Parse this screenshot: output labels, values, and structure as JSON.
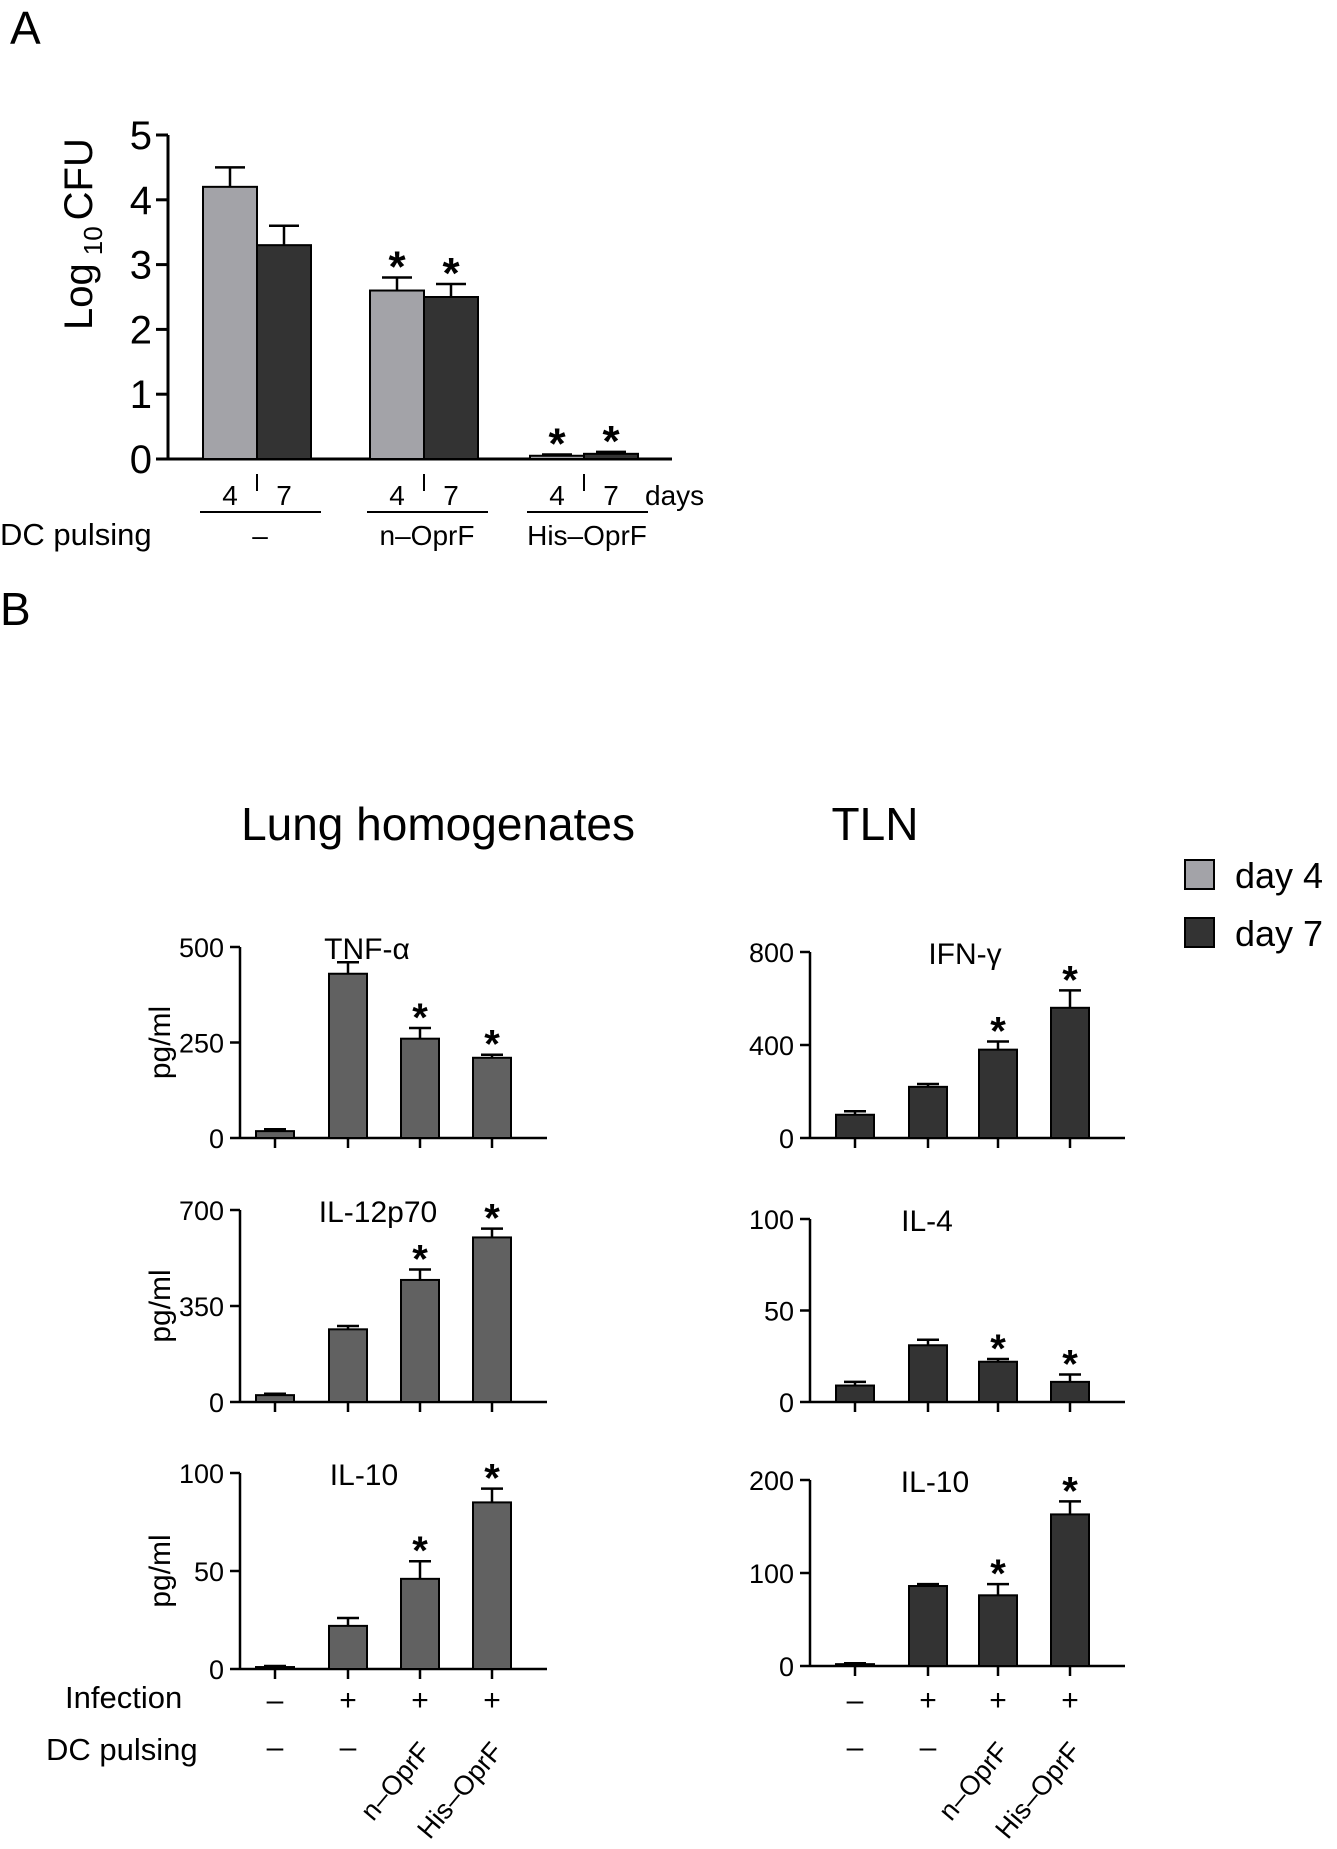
{
  "panel_a": {
    "letter": "A",
    "ylabel_prefix": "Log",
    "ylabel_sub": "10",
    "ylabel_suffix": "CFU",
    "days_label": "days",
    "dc_pulsing_label": "DC pulsing",
    "star": "*"
  },
  "panel_b": {
    "letter": "B",
    "left_title": "Lung homogenates",
    "right_title": "TLN",
    "ylabel": "pg/ml",
    "infection_label": "Infection",
    "dc_pulsing_label": "DC pulsing",
    "infection_values": [
      "–",
      "+",
      "+",
      "+"
    ],
    "pulsing_values": [
      "–",
      "–",
      "n–OprF",
      "His–OprF"
    ],
    "star": "*"
  },
  "legend": [
    {
      "label": "day 4",
      "color": "#a3a3a8"
    },
    {
      "label": "day 7",
      "color": "#333333"
    }
  ],
  "colors": {
    "day4": "#a3a3a8",
    "day7": "#333333",
    "lung": "#616161",
    "tln": "#333333"
  },
  "chart_data": [
    {
      "id": "cfu",
      "type": "bar",
      "title": "",
      "ylabel": "Log 10 CFU",
      "xlabel": "days",
      "ylim": [
        0,
        5
      ],
      "yticks": [
        0,
        1,
        2,
        3,
        4,
        5
      ],
      "groups": [
        {
          "label": "–",
          "days": [
            "4",
            "7"
          ],
          "values": [
            4.2,
            3.3
          ],
          "errors": [
            0.3,
            0.3
          ],
          "stars": [
            false,
            false
          ]
        },
        {
          "label": "n–OprF",
          "days": [
            "4",
            "7"
          ],
          "values": [
            2.6,
            2.5
          ],
          "errors": [
            0.2,
            0.2
          ],
          "stars": [
            true,
            true
          ]
        },
        {
          "label": "His–OprF",
          "days": [
            "4",
            "7"
          ],
          "values": [
            0.05,
            0.08
          ],
          "errors": [
            0.02,
            0.03
          ],
          "stars": [
            true,
            true
          ]
        }
      ],
      "series": [
        {
          "name": "day 4"
        },
        {
          "name": "day 7"
        }
      ]
    },
    {
      "id": "lung-tnf",
      "type": "bar",
      "title": "TNF-α",
      "ylabel": "pg/ml",
      "ylim": [
        0,
        500
      ],
      "yticks": [
        0,
        250,
        500
      ],
      "values": [
        18,
        430,
        260,
        210
      ],
      "errors": [
        5,
        30,
        28,
        8
      ],
      "stars": [
        false,
        false,
        true,
        true
      ]
    },
    {
      "id": "lung-il12",
      "type": "bar",
      "title": "IL-12p70",
      "ylabel": "pg/ml",
      "ylim": [
        0,
        700
      ],
      "yticks": [
        0,
        350,
        700
      ],
      "values": [
        25,
        265,
        445,
        600
      ],
      "errors": [
        5,
        12,
        38,
        32
      ],
      "stars": [
        false,
        false,
        true,
        true
      ]
    },
    {
      "id": "lung-il10",
      "type": "bar",
      "title": "IL-10",
      "ylabel": "pg/ml",
      "ylim": [
        0,
        100
      ],
      "yticks": [
        0,
        50,
        100
      ],
      "values": [
        1,
        22,
        46,
        85
      ],
      "errors": [
        0.5,
        4,
        9,
        7
      ],
      "stars": [
        false,
        false,
        true,
        true
      ]
    },
    {
      "id": "tln-ifn",
      "type": "bar",
      "title": "IFN-γ",
      "ylabel": "",
      "ylim": [
        0,
        800
      ],
      "yticks": [
        0,
        400,
        800
      ],
      "values": [
        100,
        220,
        380,
        560
      ],
      "errors": [
        15,
        12,
        35,
        75
      ],
      "stars": [
        false,
        false,
        true,
        true
      ]
    },
    {
      "id": "tln-il4",
      "type": "bar",
      "title": "IL-4",
      "ylabel": "",
      "ylim": [
        0,
        100
      ],
      "yticks": [
        0,
        50,
        100
      ],
      "values": [
        9,
        31,
        22,
        11
      ],
      "errors": [
        2,
        3,
        1.5,
        4
      ],
      "stars": [
        false,
        false,
        true,
        true
      ]
    },
    {
      "id": "tln-il10",
      "type": "bar",
      "title": "IL-10",
      "ylabel": "",
      "ylim": [
        0,
        200
      ],
      "yticks": [
        0,
        100,
        200
      ],
      "values": [
        2,
        86,
        76,
        163
      ],
      "errors": [
        1,
        2,
        12,
        14
      ],
      "stars": [
        false,
        false,
        true,
        true
      ]
    }
  ]
}
